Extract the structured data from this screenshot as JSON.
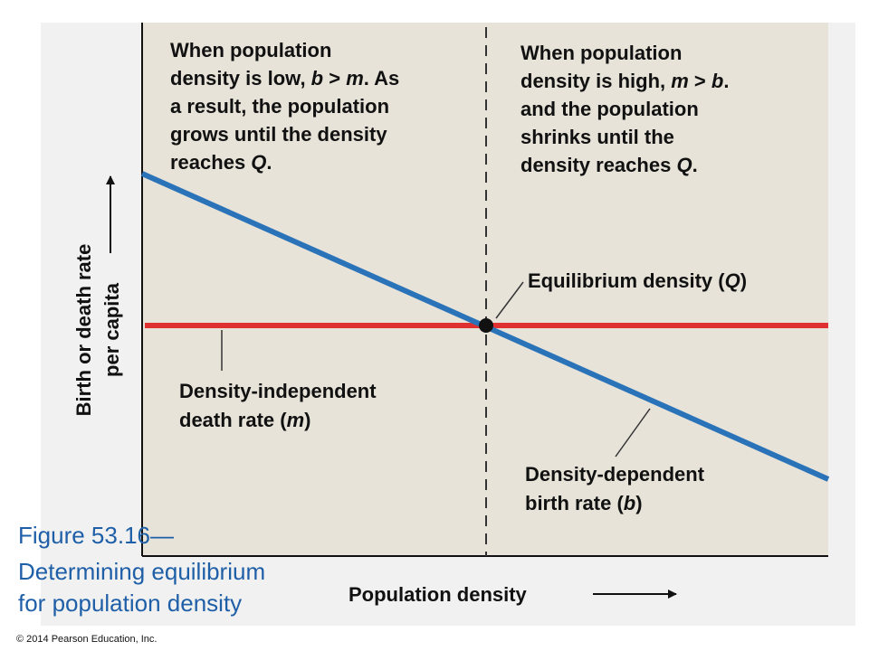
{
  "annotations": {
    "low_density": {
      "lines": [
        [
          {
            "text": "When population"
          }
        ],
        [
          {
            "text": "density is low, "
          },
          {
            "text": "b",
            "italic": true
          },
          {
            "text": " > "
          },
          {
            "text": "m",
            "italic": true
          },
          {
            "text": ". As"
          }
        ],
        [
          {
            "text": "a result, the population"
          }
        ],
        [
          {
            "text": "grows until the density"
          }
        ],
        [
          {
            "text": "reaches "
          },
          {
            "text": "Q",
            "italic": true
          },
          {
            "text": "."
          }
        ]
      ]
    },
    "high_density": {
      "lines": [
        [
          {
            "text": "When population"
          }
        ],
        [
          {
            "text": "density is high, "
          },
          {
            "text": "m",
            "italic": true
          },
          {
            "text": " > "
          },
          {
            "text": "b",
            "italic": true
          },
          {
            "text": "."
          }
        ],
        [
          {
            "text": "and the population"
          }
        ],
        [
          {
            "text": "shrinks until the"
          }
        ],
        [
          {
            "text": "density reaches "
          },
          {
            "text": "Q",
            "italic": true
          },
          {
            "text": "."
          }
        ]
      ]
    },
    "equilibrium": {
      "lines": [
        [
          {
            "text": "Equilibrium density ("
          },
          {
            "text": "Q",
            "italic": true
          },
          {
            "text": ")"
          }
        ]
      ]
    },
    "death_rate": {
      "lines": [
        [
          {
            "text": "Density-independent"
          }
        ],
        [
          {
            "text": "death rate ("
          },
          {
            "text": "m",
            "italic": true
          },
          {
            "text": ")"
          }
        ]
      ]
    },
    "birth_rate": {
      "lines": [
        [
          {
            "text": "Density-dependent"
          }
        ],
        [
          {
            "text": "birth rate ("
          },
          {
            "text": "b",
            "italic": true
          },
          {
            "text": ")"
          }
        ]
      ]
    }
  },
  "x_axis_label": "Population density",
  "y_axis_label": {
    "lines": [
      "Birth or death rate",
      "per capita"
    ]
  },
  "figure_caption": {
    "label": "Figure 53.16—",
    "lines": [
      "Determining equilibrium",
      "for population density"
    ]
  },
  "copyright": "© 2014 Pearson Education, Inc."
}
